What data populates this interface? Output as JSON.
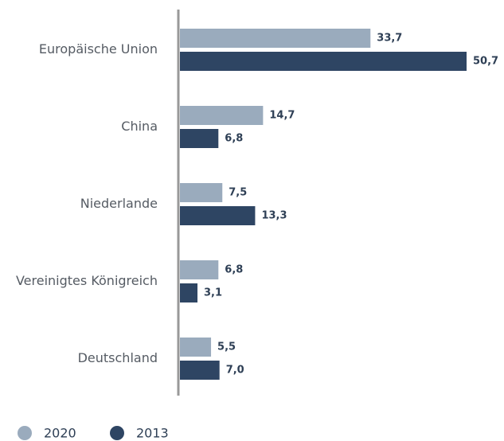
{
  "chart_data": {
    "type": "bar",
    "orientation": "horizontal",
    "categories": [
      "Europäische Union",
      "China",
      "Niederlande",
      "Vereinigtes Königreich",
      "Deutschland"
    ],
    "series": [
      {
        "name": "2020",
        "color": "#9aabbd",
        "values": [
          33.7,
          14.7,
          7.5,
          6.8,
          5.5
        ],
        "value_labels": [
          "33,7",
          "14,7",
          "7,5",
          "6,8",
          "5,5"
        ]
      },
      {
        "name": "2013",
        "color": "#2e4563",
        "values": [
          50.7,
          6.8,
          13.3,
          3.1,
          7.0
        ],
        "value_labels": [
          "50,7",
          "6,8",
          "13,3",
          "3,1",
          "7,0"
        ]
      }
    ],
    "legend": "bottom-left"
  }
}
